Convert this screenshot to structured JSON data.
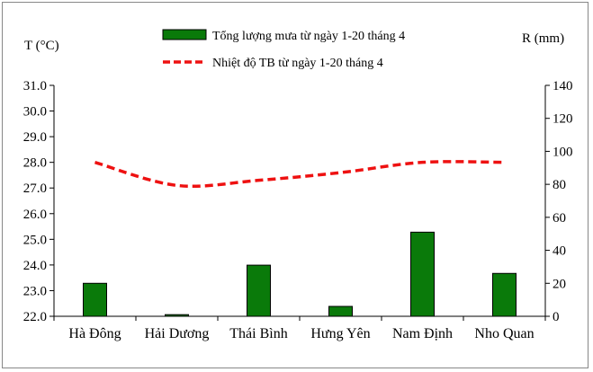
{
  "chart_data": {
    "type": "bar+line",
    "categories": [
      "Hà Đông",
      "Hải Dương",
      "Thái Bình",
      "Hưng Yên",
      "Nam Định",
      "Nho Quan"
    ],
    "series": [
      {
        "name": "Tổng lượng mưa từ ngày 1-20 tháng 4",
        "type": "bar",
        "axis": "right",
        "values": [
          20,
          1,
          31,
          6,
          51,
          26
        ]
      },
      {
        "name": "Nhiệt độ TB từ ngày 1-20 tháng 4",
        "type": "line",
        "axis": "left",
        "values": [
          28.0,
          27.1,
          27.3,
          27.6,
          28.0,
          28.0
        ]
      }
    ],
    "ylabel_left": "T (°C)",
    "ylabel_right": "R (mm)",
    "ylim_left": [
      22.0,
      31.0
    ],
    "ylim_right": [
      0,
      140
    ],
    "yticks_left": [
      "22.0",
      "23.0",
      "24.0",
      "25.0",
      "26.0",
      "27.0",
      "28.0",
      "29.0",
      "30.0",
      "31.0"
    ],
    "yticks_right": [
      "0",
      "20",
      "40",
      "60",
      "80",
      "100",
      "120",
      "140"
    ],
    "grid": false,
    "legend": "top-center",
    "colors": {
      "bar": "#0a7a0a",
      "bar_edge": "#000000",
      "line": "#ee1111"
    }
  }
}
